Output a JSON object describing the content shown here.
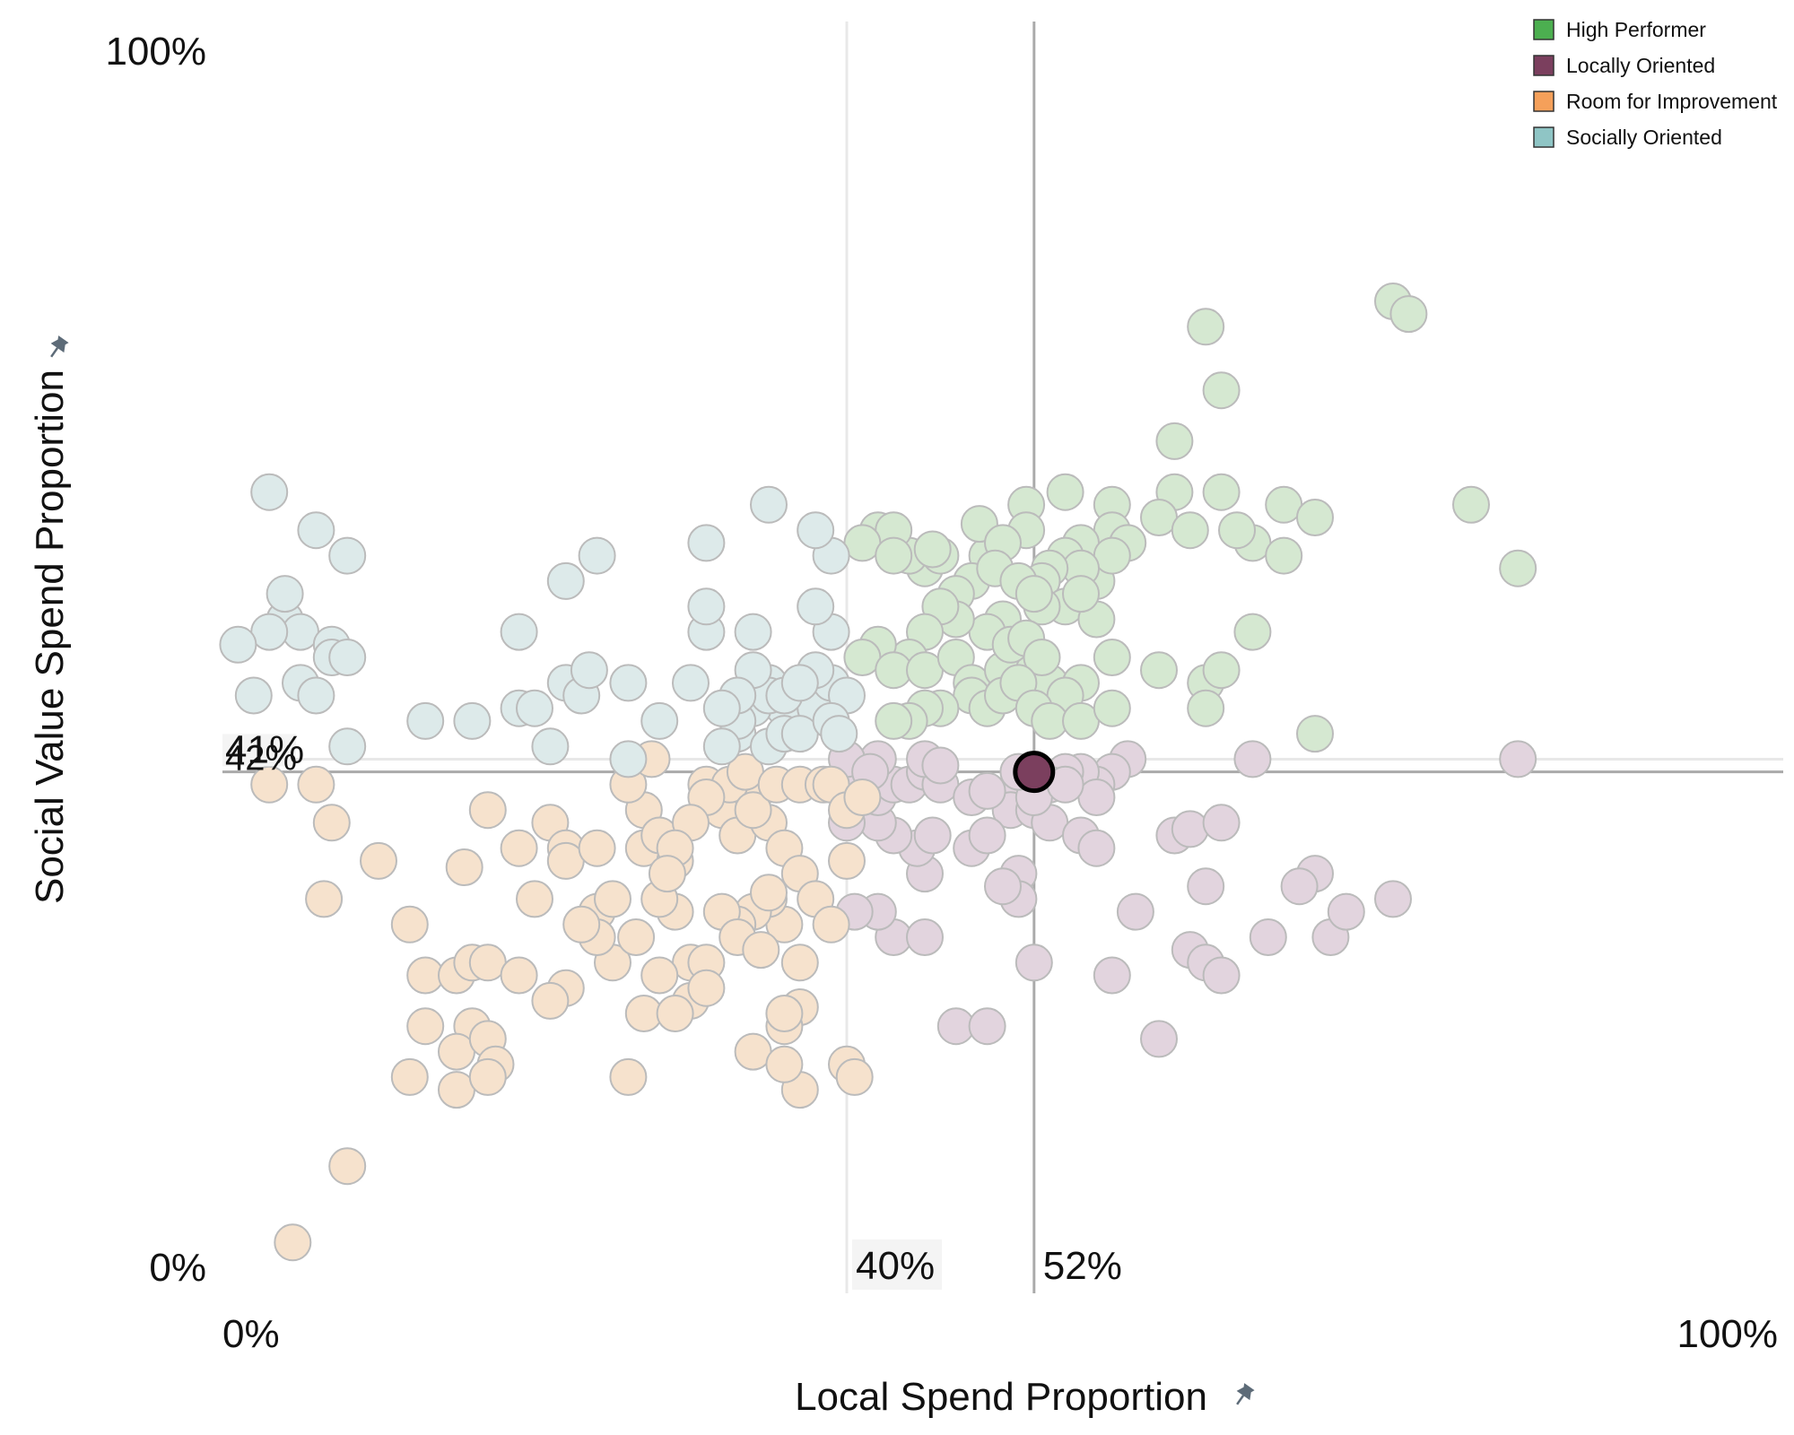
{
  "chart_data": {
    "type": "scatter",
    "title": "",
    "xlabel": "Local Spend Proportion",
    "ylabel": "Social Value Spend Proportion",
    "xlim": [
      0,
      100
    ],
    "ylim": [
      0,
      100
    ],
    "x_tick_labels": [
      "0%",
      "100%"
    ],
    "y_tick_labels": [
      "0%",
      "100%"
    ],
    "legend_position": "top-right",
    "grid": false,
    "legend": [
      {
        "name": "High Performer",
        "color": "#4CAF50"
      },
      {
        "name": "Locally Oriented",
        "color": "#7B3F5E"
      },
      {
        "name": "Room for Improvement",
        "color": "#F5A05A"
      },
      {
        "name": "Socially Oriented",
        "color": "#8FC5C5"
      }
    ],
    "faded_colors": {
      "High Performer": "#D5E8D1",
      "Locally Oriented": "#E2D4DE",
      "Room for Improvement": "#F6E2CD",
      "Socially Oriented": "#DDEAEA"
    },
    "reference_lines": {
      "median": {
        "x": 40,
        "y": 42,
        "x_label": "40%",
        "y_label": "42%"
      },
      "selected": {
        "x": 52,
        "y": 41,
        "x_label": "52%",
        "y_label": "41%"
      }
    },
    "highlight": {
      "series": "Locally Oriented",
      "x": 52,
      "y": 41
    },
    "series": [
      {
        "name": "High Performer",
        "points": [
          [
            75,
            78
          ],
          [
            76,
            77
          ],
          [
            63,
            76
          ],
          [
            64,
            71
          ],
          [
            61,
            67
          ],
          [
            61,
            63
          ],
          [
            64,
            63
          ],
          [
            80,
            62
          ],
          [
            51.5,
            62
          ],
          [
            54,
            63
          ],
          [
            57,
            62
          ],
          [
            57,
            60
          ],
          [
            60,
            61
          ],
          [
            68,
            62
          ],
          [
            70,
            61
          ],
          [
            66,
            59
          ],
          [
            65,
            60
          ],
          [
            62,
            60
          ],
          [
            58,
            59
          ],
          [
            55,
            59
          ],
          [
            51.5,
            60
          ],
          [
            54,
            58
          ],
          [
            56,
            56
          ],
          [
            57,
            58
          ],
          [
            55,
            57
          ],
          [
            53,
            57
          ],
          [
            52.5,
            56
          ],
          [
            49,
            58
          ],
          [
            48,
            56
          ],
          [
            47,
            55
          ],
          [
            45,
            57
          ],
          [
            44,
            58
          ],
          [
            46,
            58
          ],
          [
            42,
            60
          ],
          [
            43,
            60
          ],
          [
            41,
            59
          ],
          [
            43,
            58
          ],
          [
            45.5,
            58.5
          ],
          [
            48.5,
            60.5
          ],
          [
            50,
            59
          ],
          [
            49.5,
            57
          ],
          [
            51,
            56
          ],
          [
            54,
            54
          ],
          [
            56,
            53
          ],
          [
            52.5,
            54
          ],
          [
            52,
            55
          ],
          [
            50,
            53
          ],
          [
            49,
            52
          ],
          [
            47,
            53
          ],
          [
            46,
            54
          ],
          [
            45,
            52
          ],
          [
            44,
            50
          ],
          [
            42,
            51
          ],
          [
            41,
            50
          ],
          [
            43,
            49
          ],
          [
            45,
            49
          ],
          [
            47,
            50
          ],
          [
            48,
            48
          ],
          [
            50,
            49
          ],
          [
            52,
            49
          ],
          [
            53,
            48
          ],
          [
            55,
            48
          ],
          [
            57,
            50
          ],
          [
            60,
            49
          ],
          [
            63,
            48
          ],
          [
            64,
            49
          ],
          [
            66,
            52
          ],
          [
            68,
            58
          ],
          [
            83,
            57
          ],
          [
            55,
            55
          ],
          [
            50.5,
            51
          ],
          [
            51.5,
            51.5
          ],
          [
            52.5,
            50
          ],
          [
            48,
            47
          ],
          [
            46,
            46
          ],
          [
            45,
            46
          ],
          [
            44,
            45
          ],
          [
            43,
            45
          ],
          [
            49,
            46
          ],
          [
            50,
            47
          ],
          [
            51,
            48
          ],
          [
            54,
            47
          ],
          [
            52,
            46
          ],
          [
            53,
            45
          ],
          [
            55,
            45
          ],
          [
            57,
            46
          ],
          [
            63,
            46
          ],
          [
            70,
            44
          ]
        ]
      },
      {
        "name": "Locally Oriented",
        "points": [
          [
            83,
            42
          ],
          [
            66,
            42
          ],
          [
            58,
            42
          ],
          [
            57,
            41
          ],
          [
            56,
            40
          ],
          [
            55,
            41
          ],
          [
            54,
            41
          ],
          [
            53,
            40
          ],
          [
            51,
            40
          ],
          [
            50.5,
            38
          ],
          [
            52,
            38
          ],
          [
            53,
            37
          ],
          [
            56,
            39
          ],
          [
            55,
            36
          ],
          [
            56,
            35
          ],
          [
            61,
            36
          ],
          [
            62,
            36.5
          ],
          [
            64,
            37
          ],
          [
            70,
            33
          ],
          [
            75,
            31
          ],
          [
            62,
            27
          ],
          [
            63,
            26
          ],
          [
            64,
            25
          ],
          [
            57,
            25
          ],
          [
            60,
            20
          ],
          [
            47,
            21
          ],
          [
            49,
            21
          ],
          [
            52,
            26
          ],
          [
            51,
            33
          ],
          [
            51,
            31
          ],
          [
            50,
            32
          ],
          [
            43,
            28
          ],
          [
            42,
            30
          ],
          [
            45,
            28
          ],
          [
            45,
            33
          ],
          [
            44.5,
            35
          ],
          [
            43,
            36
          ],
          [
            42,
            37
          ],
          [
            40,
            37
          ],
          [
            41,
            40
          ],
          [
            42,
            39
          ],
          [
            43,
            40
          ],
          [
            44,
            40
          ],
          [
            45,
            41
          ],
          [
            46,
            40
          ],
          [
            48,
            39
          ],
          [
            49,
            39.5
          ],
          [
            52,
            39
          ],
          [
            51,
            41
          ],
          [
            54,
            40
          ],
          [
            42,
            42
          ],
          [
            45,
            42
          ],
          [
            46,
            41.5
          ],
          [
            40.5,
            30
          ],
          [
            45.5,
            36
          ],
          [
            48,
            35
          ],
          [
            49,
            36
          ],
          [
            63,
            32
          ],
          [
            69,
            32
          ],
          [
            67,
            28
          ],
          [
            71,
            28
          ],
          [
            72,
            30
          ],
          [
            58.5,
            30
          ],
          [
            40,
            42
          ],
          [
            41.5,
            41
          ]
        ]
      },
      {
        "name": "Room for Improvement",
        "points": [
          [
            3,
            40
          ],
          [
            6,
            40
          ],
          [
            7,
            37
          ],
          [
            6.5,
            31
          ],
          [
            12,
            29
          ],
          [
            13,
            25
          ],
          [
            15,
            25
          ],
          [
            16,
            26
          ],
          [
            17,
            26
          ],
          [
            13,
            21
          ],
          [
            16,
            21
          ],
          [
            15,
            19
          ],
          [
            17,
            20
          ],
          [
            17.5,
            18
          ],
          [
            12,
            17
          ],
          [
            15,
            16
          ],
          [
            17,
            17
          ],
          [
            4.5,
            4
          ],
          [
            8,
            10
          ],
          [
            19,
            25
          ],
          [
            20,
            31
          ],
          [
            21,
            37
          ],
          [
            22,
            35
          ],
          [
            22,
            34
          ],
          [
            24,
            30
          ],
          [
            24,
            35
          ],
          [
            25,
            31
          ],
          [
            27,
            35
          ],
          [
            27,
            38
          ],
          [
            29,
            34
          ],
          [
            28,
            36
          ],
          [
            29,
            30
          ],
          [
            30,
            26
          ],
          [
            31,
            40
          ],
          [
            32,
            38
          ],
          [
            33,
            36
          ],
          [
            34,
            39
          ],
          [
            35,
            37
          ],
          [
            36,
            35
          ],
          [
            37,
            33
          ],
          [
            38,
            31
          ],
          [
            39,
            29
          ],
          [
            40,
            34
          ],
          [
            36,
            29
          ],
          [
            35,
            31
          ],
          [
            34,
            30
          ],
          [
            33,
            29
          ],
          [
            32,
            30
          ],
          [
            31,
            26
          ],
          [
            30,
            23
          ],
          [
            28,
            25
          ],
          [
            27,
            22
          ],
          [
            25,
            26
          ],
          [
            24,
            28
          ],
          [
            23,
            29
          ],
          [
            22,
            24
          ],
          [
            21,
            23
          ],
          [
            19,
            35
          ],
          [
            17,
            38
          ],
          [
            15.5,
            33.5
          ],
          [
            10,
            34
          ],
          [
            26,
            40
          ],
          [
            27.5,
            42
          ],
          [
            32.5,
            40
          ],
          [
            33.5,
            41
          ],
          [
            34,
            38
          ],
          [
            35.5,
            40
          ],
          [
            37,
            40
          ],
          [
            38.5,
            40
          ],
          [
            39,
            40
          ],
          [
            40,
            38
          ],
          [
            41,
            39
          ],
          [
            31,
            39
          ],
          [
            30,
            37
          ],
          [
            29,
            35
          ],
          [
            28,
            31
          ],
          [
            26.5,
            28
          ],
          [
            28.5,
            33
          ],
          [
            31,
            24
          ],
          [
            33,
            28
          ],
          [
            34.5,
            27
          ],
          [
            35,
            31.5
          ],
          [
            37,
            26
          ],
          [
            37,
            22.5
          ],
          [
            36,
            21
          ],
          [
            36,
            22
          ],
          [
            34,
            19
          ],
          [
            37,
            16
          ],
          [
            36,
            18
          ],
          [
            40,
            18
          ],
          [
            40.5,
            17
          ],
          [
            26,
            17
          ],
          [
            29,
            22
          ]
        ]
      },
      {
        "name": "Socially Oriented",
        "points": [
          [
            3,
            63
          ],
          [
            6,
            60
          ],
          [
            8,
            58
          ],
          [
            4,
            53
          ],
          [
            4,
            55
          ],
          [
            5,
            52
          ],
          [
            7,
            51
          ],
          [
            7,
            50
          ],
          [
            8,
            50
          ],
          [
            3,
            52
          ],
          [
            1,
            51
          ],
          [
            2,
            47
          ],
          [
            5,
            48
          ],
          [
            6,
            47
          ],
          [
            8,
            43
          ],
          [
            13,
            45
          ],
          [
            16,
            45
          ],
          [
            19,
            46
          ],
          [
            20,
            46
          ],
          [
            22,
            48
          ],
          [
            23,
            47
          ],
          [
            23.5,
            49
          ],
          [
            21,
            43
          ],
          [
            26,
            48
          ],
          [
            28,
            45
          ],
          [
            30,
            48
          ],
          [
            31,
            52
          ],
          [
            31,
            54
          ],
          [
            34,
            52
          ],
          [
            33,
            44
          ],
          [
            35,
            43
          ],
          [
            36,
            46
          ],
          [
            38,
            46
          ],
          [
            39,
            48
          ],
          [
            40,
            47
          ],
          [
            38,
            49
          ],
          [
            39,
            52
          ],
          [
            38,
            54
          ],
          [
            39,
            58
          ],
          [
            38,
            60
          ],
          [
            35,
            62
          ],
          [
            31,
            59
          ],
          [
            24,
            58
          ],
          [
            22,
            56
          ],
          [
            26,
            42
          ],
          [
            19,
            52
          ],
          [
            35,
            48
          ],
          [
            34,
            46
          ],
          [
            33,
            45
          ],
          [
            32,
            43
          ],
          [
            36,
            44
          ],
          [
            37,
            44
          ],
          [
            39,
            45
          ],
          [
            39.5,
            44
          ],
          [
            35,
            47
          ],
          [
            36,
            47
          ],
          [
            37,
            48
          ],
          [
            34,
            49
          ],
          [
            33,
            47
          ],
          [
            32,
            46
          ]
        ]
      }
    ]
  }
}
